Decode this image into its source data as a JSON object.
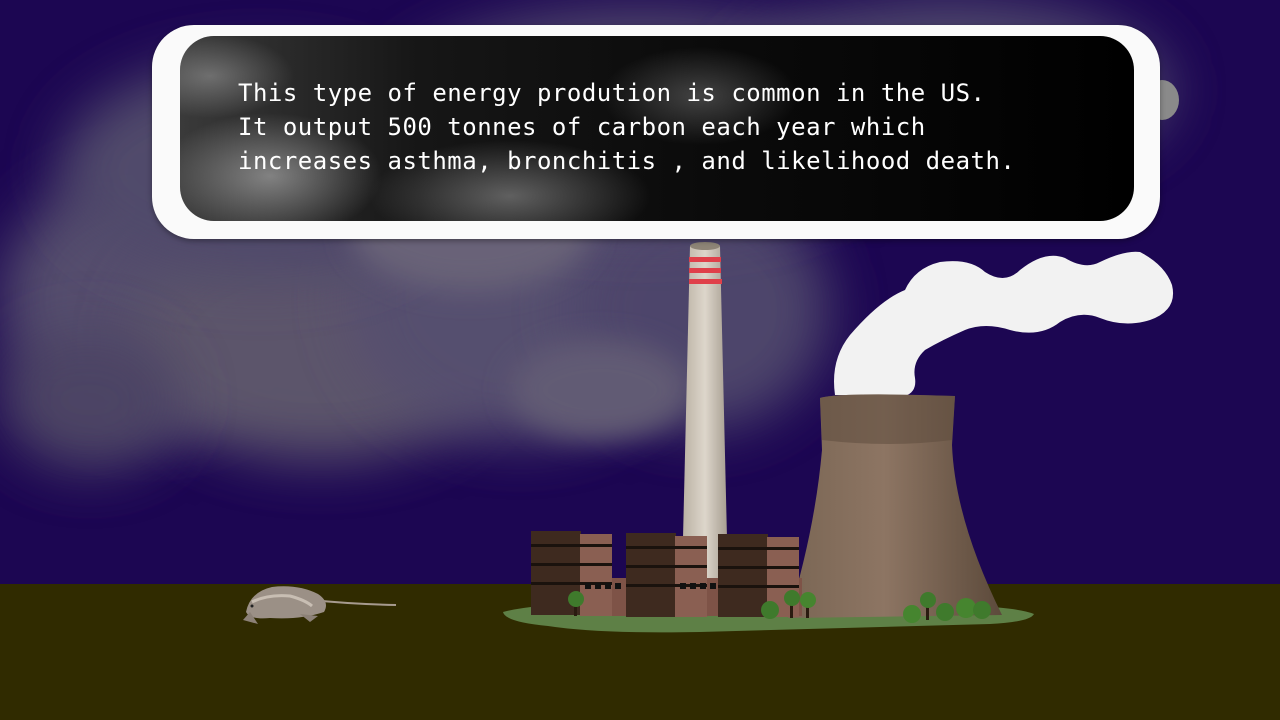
{
  "dialog": {
    "lines": [
      "This type of energy prodution is common in the US.",
      "It output 500 tonnes of carbon each year which",
      "increases asthma, bronchitis , and likelihood death."
    ]
  },
  "colors": {
    "sky": "#1c0652",
    "ground": "#302b00",
    "tower": "#7a6552",
    "chimney": "#cfc6b8",
    "chimney_stripe": "#e0404a",
    "grass": "#5e8046"
  }
}
